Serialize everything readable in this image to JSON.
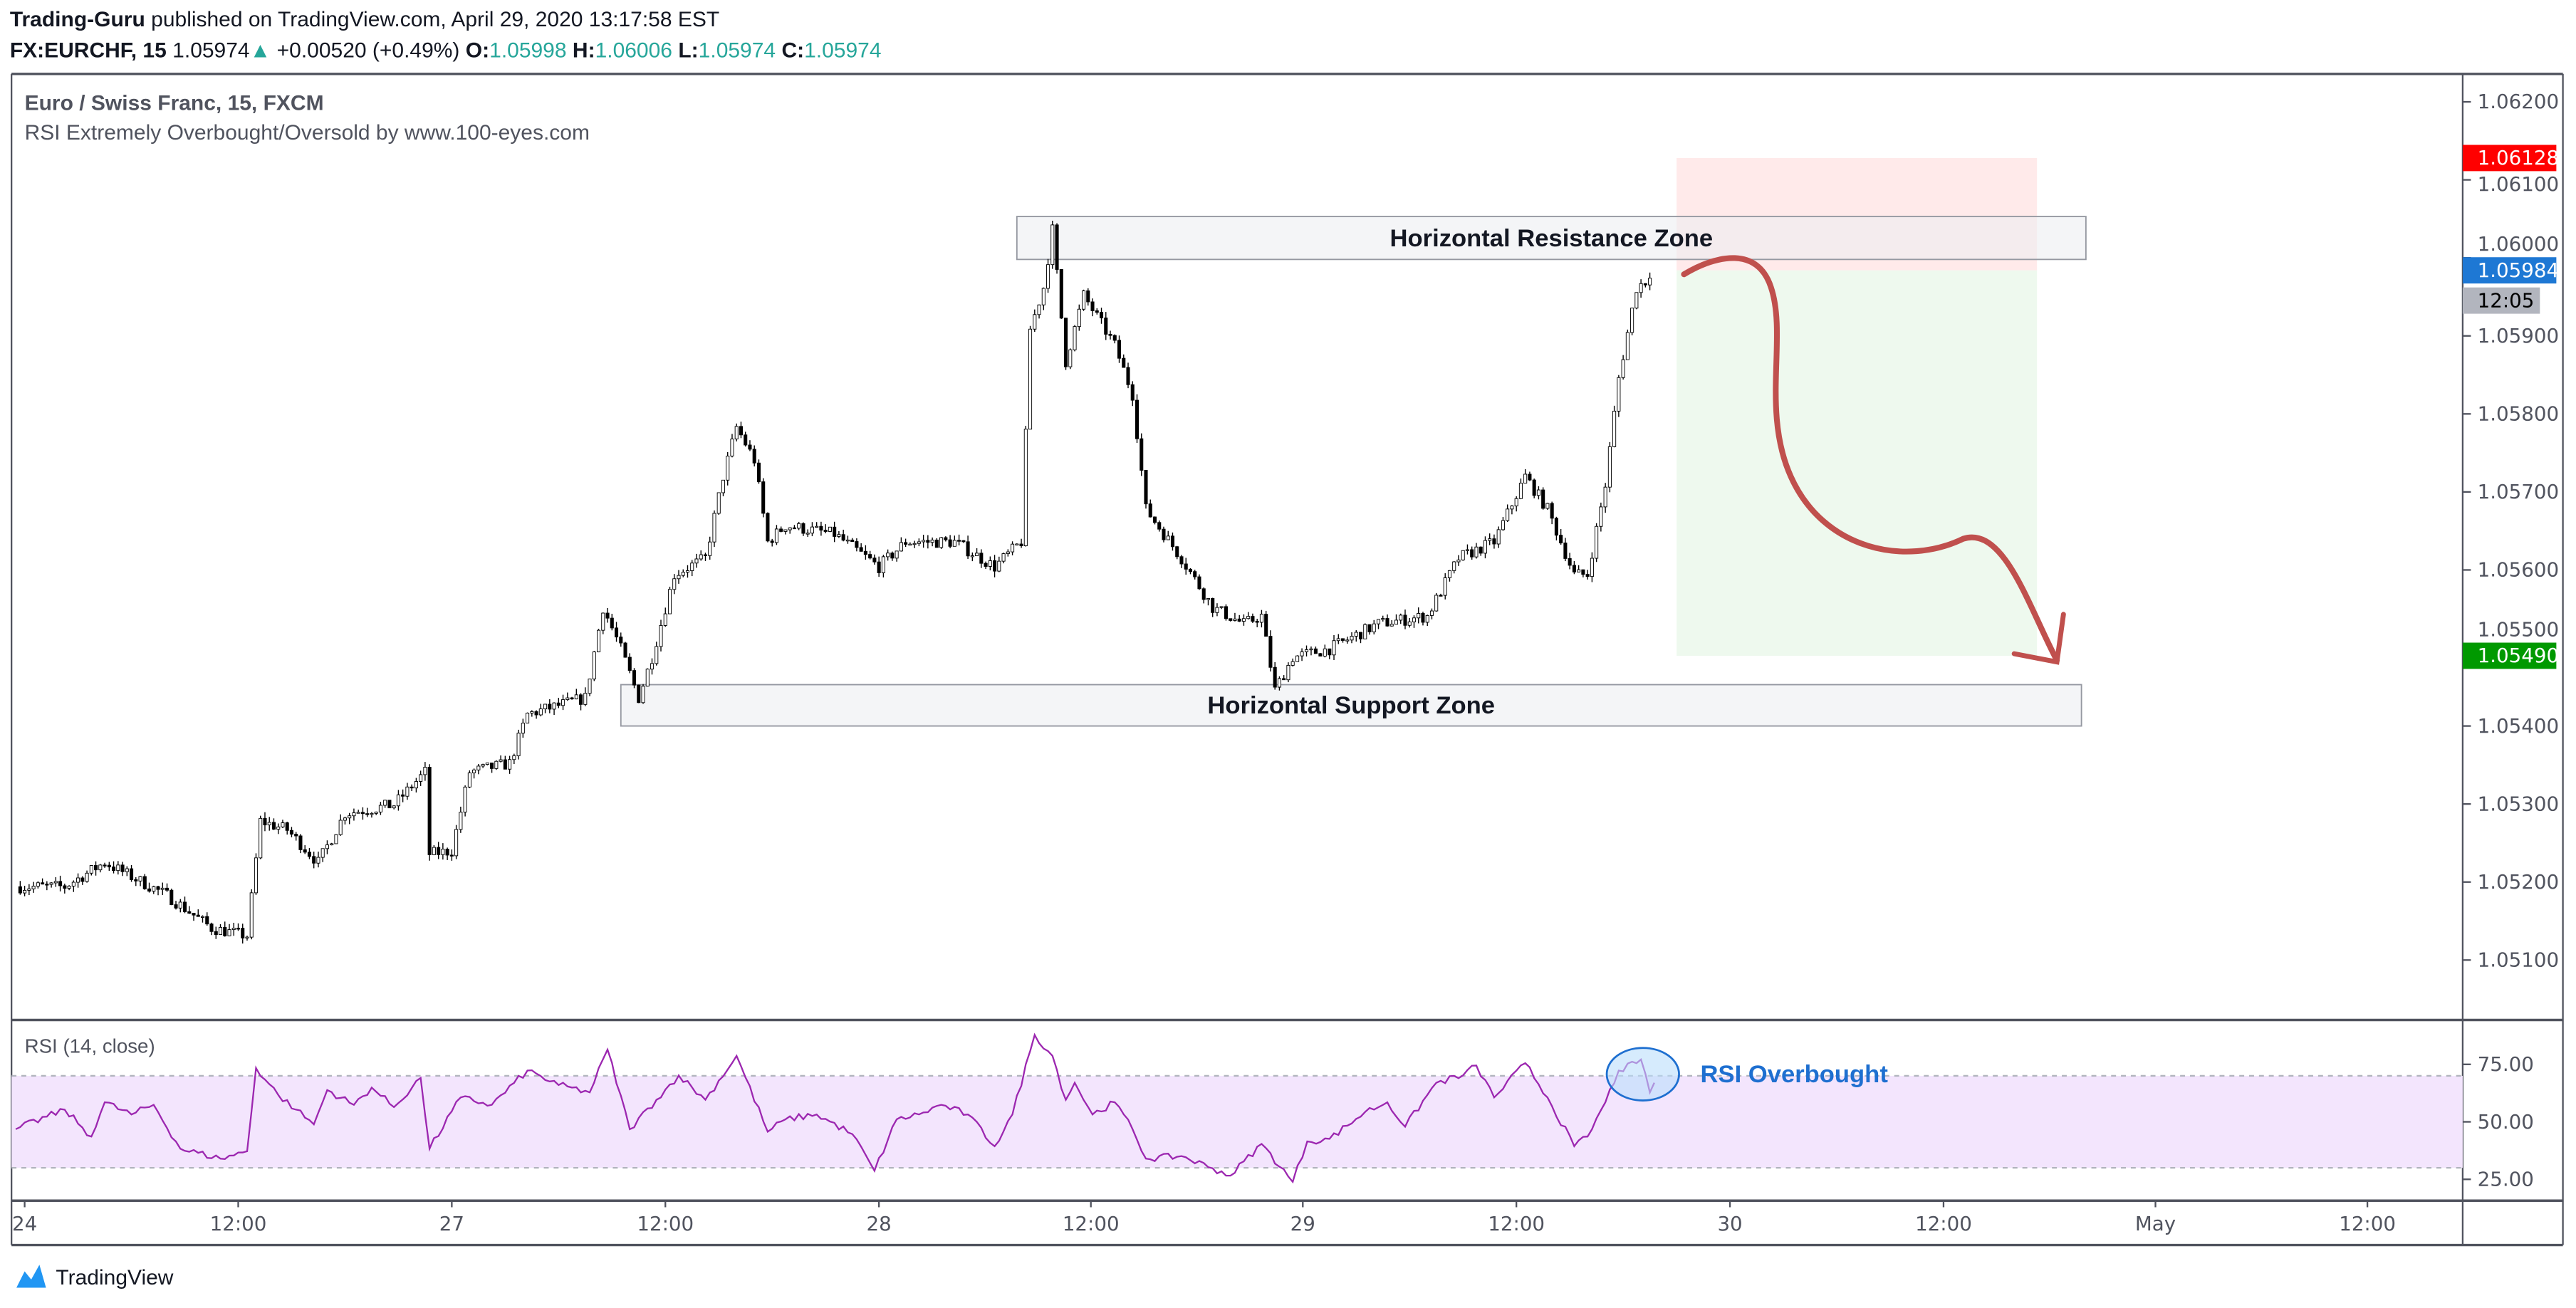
{
  "header": {
    "author": "Trading-Guru",
    "published": "published on TradingView.com, April 29, 2020 13:17:58 EST",
    "symbol": "FX:EURCHF, 15",
    "last": "1.05974",
    "change": "+0.00520 (+0.49%)",
    "o_label": "O:",
    "o": "1.05998",
    "h_label": "H:",
    "h": "1.06006",
    "l_label": "L:",
    "l": "1.05974",
    "c_label": "C:",
    "c": "1.05974"
  },
  "legend": {
    "title": "Euro / Swiss Franc, 15, FXCM",
    "indicator": "RSI Extremely Overbought/Oversold by www.100-eyes.com",
    "rsi": "RSI (14, close)"
  },
  "badges": {
    "stop": "1.06128",
    "current": "1.05984",
    "countdown": "12:05",
    "target": "1.05490"
  },
  "colors": {
    "up": "#ffffff",
    "down": "#000000",
    "rsi": "#9c27b0",
    "rsi_band": "#f3e5fd",
    "stop": "#ff0000",
    "current": "#1e78d4",
    "target": "#009900",
    "arrow": "#c0504d",
    "annotation": "#1e6fd0"
  },
  "logo": "TradingView",
  "chart_data": [
    {
      "type": "candlestick",
      "interval": "15",
      "price_ticks": [
        "1.06200",
        "1.06100",
        "1.06000",
        "1.05900",
        "1.05800",
        "1.05700",
        "1.05600",
        "1.05500",
        "1.05400",
        "1.05300",
        "1.05200",
        "1.05100"
      ],
      "ylim": [
        1.0505,
        1.0624
      ],
      "x_ticks": [
        "24",
        "12:00",
        "27",
        "12:00",
        "28",
        "12:00",
        "29",
        "12:00",
        "30",
        "12:00",
        "May",
        "12:00"
      ],
      "close_path": [
        [
          "2020-04-23 23:30",
          1.05194
        ],
        [
          "2020-04-24 02:15",
          1.05194
        ],
        [
          "2020-04-24 04:30",
          1.05225
        ],
        [
          "2020-04-24 08:00",
          1.05183
        ],
        [
          "2020-04-24 10:30",
          1.05141
        ],
        [
          "2020-04-24 12:30",
          1.05131
        ],
        [
          "2020-04-24 13:15",
          1.05278
        ],
        [
          "2020-04-24 14:45",
          1.05267
        ],
        [
          "2020-04-24 16:30",
          1.05225
        ],
        [
          "2020-04-24 18:00",
          1.05288
        ],
        [
          "2020-04-24 20:45",
          1.05299
        ],
        [
          "2020-04-24 22:30",
          1.05341
        ],
        [
          "2020-04-24 22:45",
          1.05236
        ],
        [
          "2020-04-27 00:00",
          1.0524
        ],
        [
          "2020-04-27 01:00",
          1.05341
        ],
        [
          "2020-04-27 03:15",
          1.05352
        ],
        [
          "2020-04-27 04:15",
          1.05415
        ],
        [
          "2020-04-27 07:30",
          1.05436
        ],
        [
          "2020-04-27 08:30",
          1.05552
        ],
        [
          "2020-04-27 09:30",
          1.05499
        ],
        [
          "2020-04-27 10:30",
          1.05436
        ],
        [
          "2020-04-27 11:15",
          1.05488
        ],
        [
          "2020-04-27 12:30",
          1.05594
        ],
        [
          "2020-04-27 14:15",
          1.05615
        ],
        [
          "2020-04-27 15:15",
          1.0572
        ],
        [
          "2020-04-27 16:00",
          1.05783
        ],
        [
          "2020-04-27 17:00",
          1.05741
        ],
        [
          "2020-04-27 17:45",
          1.05636
        ],
        [
          "2020-04-27 18:45",
          1.05657
        ],
        [
          "2020-04-27 21:30",
          1.05646
        ],
        [
          "2020-04-28 00:00",
          1.05604
        ],
        [
          "2020-04-28 01:30",
          1.05636
        ],
        [
          "2020-04-28 04:15",
          1.05636
        ],
        [
          "2020-04-28 06:30",
          1.05604
        ],
        [
          "2020-04-28 08:00",
          1.05636
        ],
        [
          "2020-04-28 08:30",
          1.05909
        ],
        [
          "2020-04-28 09:15",
          1.05962
        ],
        [
          "2020-04-28 09:45",
          1.06036
        ],
        [
          "2020-04-28 10:30",
          1.05867
        ],
        [
          "2020-04-28 11:30",
          1.05952
        ],
        [
          "2020-04-28 13:15",
          1.05888
        ],
        [
          "2020-04-28 14:15",
          1.05825
        ],
        [
          "2020-04-28 15:00",
          1.05678
        ],
        [
          "2020-04-28 17:00",
          1.05615
        ],
        [
          "2020-04-28 18:45",
          1.05552
        ],
        [
          "2020-04-28 20:30",
          1.05531
        ],
        [
          "2020-04-28 21:30",
          1.05541
        ],
        [
          "2020-04-28 22:15",
          1.05446
        ],
        [
          "2020-04-28 23:15",
          1.05488
        ],
        [
          "2020-04-29 01:30",
          1.05499
        ],
        [
          "2020-04-29 04:15",
          1.05531
        ],
        [
          "2020-04-29 07:00",
          1.05541
        ],
        [
          "2020-04-29 08:45",
          1.05615
        ],
        [
          "2020-04-29 10:45",
          1.05636
        ],
        [
          "2020-04-29 12:30",
          1.0572
        ],
        [
          "2020-04-29 13:45",
          1.05678
        ],
        [
          "2020-04-29 15:15",
          1.05594
        ],
        [
          "2020-04-29 16:00",
          1.05594
        ],
        [
          "2020-04-29 17:00",
          1.05709
        ],
        [
          "2020-04-29 17:45",
          1.05846
        ],
        [
          "2020-04-29 18:45",
          1.05962
        ],
        [
          "2020-04-29 19:30",
          1.05974
        ]
      ],
      "annotations": {
        "resistance": {
          "label": "Horizontal Resistance Zone",
          "from": "2020-04-28 07:45",
          "to": "2020-04-30 20:00",
          "top": 1.06053,
          "bottom": 1.05998
        },
        "support": {
          "label": "Horizontal Support Zone",
          "from": "2020-04-27 09:30",
          "to": "2020-04-30 19:45",
          "top": 1.05453,
          "bottom": 1.054
        },
        "short_position": {
          "from": "2020-04-29 21:00",
          "to": "2020-04-30 17:15",
          "stop": 1.06128,
          "entry": 1.05984,
          "target": 1.0549
        }
      }
    },
    {
      "type": "line",
      "name": "RSI (14, close)",
      "ylim": [
        15,
        95
      ],
      "y_ticks": [
        "75.00",
        "50.00",
        "25.00"
      ],
      "band": [
        30,
        70
      ],
      "annotation": "RSI Overbought",
      "points": [
        [
          "2020-04-23 23:30",
          46.8
        ],
        [
          "2020-04-24 02:15",
          55.3
        ],
        [
          "2020-04-24 03:45",
          43.6
        ],
        [
          "2020-04-24 04:30",
          58.5
        ],
        [
          "2020-04-24 06:00",
          53.2
        ],
        [
          "2020-04-24 07:15",
          57.4
        ],
        [
          "2020-04-24 08:45",
          38.3
        ],
        [
          "2020-04-24 11:00",
          34
        ],
        [
          "2020-04-24 12:30",
          37.2
        ],
        [
          "2020-04-24 13:00",
          73.4
        ],
        [
          "2020-04-24 14:15",
          61.7
        ],
        [
          "2020-04-24 15:15",
          55.3
        ],
        [
          "2020-04-24 16:15",
          48.9
        ],
        [
          "2020-04-24 17:00",
          63.8
        ],
        [
          "2020-04-24 18:30",
          57.4
        ],
        [
          "2020-04-24 19:30",
          64.9
        ],
        [
          "2020-04-24 20:45",
          56.4
        ],
        [
          "2020-04-24 22:15",
          69.1
        ],
        [
          "2020-04-24 22:45",
          38.3
        ],
        [
          "2020-04-27 00:30",
          60.6
        ],
        [
          "2020-04-27 02:15",
          57.4
        ],
        [
          "2020-04-27 04:15",
          72.3
        ],
        [
          "2020-04-27 06:00",
          66
        ],
        [
          "2020-04-27 07:45",
          62.8
        ],
        [
          "2020-04-27 08:45",
          81.4
        ],
        [
          "2020-04-27 10:00",
          46.8
        ],
        [
          "2020-04-27 11:30",
          59.6
        ],
        [
          "2020-04-27 12:45",
          70.2
        ],
        [
          "2020-04-27 14:15",
          59.6
        ],
        [
          "2020-04-27 16:00",
          78.7
        ],
        [
          "2020-04-27 17:45",
          45.7
        ],
        [
          "2020-04-27 18:45",
          51.1
        ],
        [
          "2020-04-27 20:30",
          53.2
        ],
        [
          "2020-04-27 22:30",
          44.7
        ],
        [
          "2020-04-27 23:45",
          28.7
        ],
        [
          "2020-04-28 01:00",
          51.1
        ],
        [
          "2020-04-28 02:15",
          53.2
        ],
        [
          "2020-04-28 03:30",
          57.4
        ],
        [
          "2020-04-28 05:00",
          53.2
        ],
        [
          "2020-04-28 06:30",
          39.4
        ],
        [
          "2020-04-28 07:30",
          53.2
        ],
        [
          "2020-04-28 08:45",
          87.8
        ],
        [
          "2020-04-28 09:45",
          78.7
        ],
        [
          "2020-04-28 10:30",
          59.6
        ],
        [
          "2020-04-28 11:00",
          67
        ],
        [
          "2020-04-28 12:00",
          53.2
        ],
        [
          "2020-04-28 13:15",
          58.5
        ],
        [
          "2020-04-28 14:15",
          46.8
        ],
        [
          "2020-04-28 15:00",
          34
        ],
        [
          "2020-04-28 17:00",
          35.1
        ],
        [
          "2020-04-28 18:45",
          29.8
        ],
        [
          "2020-04-28 19:45",
          26.6
        ],
        [
          "2020-04-28 21:30",
          40.4
        ],
        [
          "2020-04-28 23:15",
          23.9
        ],
        [
          "2020-04-29 00:15",
          41.5
        ],
        [
          "2020-04-29 01:30",
          42.6
        ],
        [
          "2020-04-29 03:30",
          54.3
        ],
        [
          "2020-04-29 04:45",
          58.5
        ],
        [
          "2020-04-29 05:45",
          47.9
        ],
        [
          "2020-04-29 07:30",
          67
        ],
        [
          "2020-04-29 09:00",
          70.2
        ],
        [
          "2020-04-29 09:45",
          74.5
        ],
        [
          "2020-04-29 10:45",
          60.6
        ],
        [
          "2020-04-29 12:30",
          75.5
        ],
        [
          "2020-04-29 13:45",
          60.6
        ],
        [
          "2020-04-29 15:15",
          39.4
        ],
        [
          "2020-04-29 16:00",
          43.6
        ],
        [
          "2020-04-29 17:00",
          58.5
        ],
        [
          "2020-04-29 17:45",
          72.3
        ],
        [
          "2020-04-29 18:45",
          75.5
        ],
        [
          "2020-04-29 19:00",
          77.1
        ],
        [
          "2020-04-29 19:30",
          62.8
        ],
        [
          "2020-04-29 19:45",
          67
        ]
      ]
    }
  ]
}
